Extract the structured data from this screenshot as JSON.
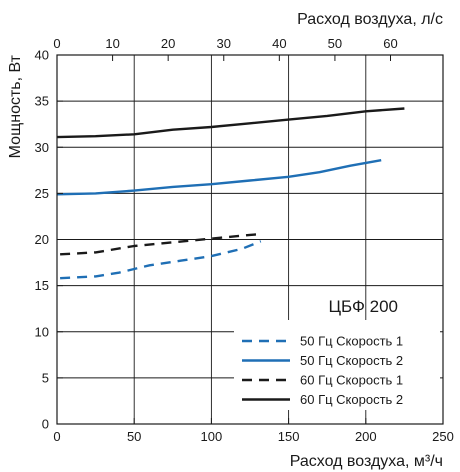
{
  "chart_data": {
    "type": "line",
    "title": "ЦБФ 200",
    "xlabel": "Расход воздуха, м³/ч",
    "x2label": "Расход воздуха, л/с",
    "ylabel": "Мощность, Вт",
    "xlim": [
      0,
      250
    ],
    "x2lim": [
      0,
      69.444
    ],
    "ylim": [
      0,
      40
    ],
    "xticks": [
      "0",
      "50",
      "100",
      "150",
      "200",
      "250"
    ],
    "x2ticks": [
      "0",
      "10",
      "20",
      "30",
      "40",
      "50",
      "60"
    ],
    "yticks": [
      "0",
      "5",
      "10",
      "15",
      "20",
      "25",
      "30",
      "35",
      "40"
    ],
    "grid": true,
    "legend_position": "bottom-right",
    "series": [
      {
        "name": "50 Гц Скорость 1",
        "color": "#1f6fb5",
        "dash": "dashed",
        "x": [
          2,
          25,
          40,
          60,
          80,
          100,
          120,
          132
        ],
        "y": [
          15.8,
          16.0,
          16.4,
          17.2,
          17.7,
          18.2,
          19.0,
          19.8
        ]
      },
      {
        "name": "50 Гц Скорость 2",
        "color": "#1f6fb5",
        "dash": "solid",
        "x": [
          0,
          25,
          50,
          75,
          100,
          125,
          150,
          170,
          190,
          210
        ],
        "y": [
          24.9,
          25.0,
          25.3,
          25.7,
          26.0,
          26.4,
          26.8,
          27.3,
          28.0,
          28.6
        ]
      },
      {
        "name": "60 Гц Скорость 1",
        "color": "#1a1a1a",
        "dash": "dashed",
        "x": [
          2,
          25,
          50,
          75,
          100,
          125,
          133
        ],
        "y": [
          18.4,
          18.6,
          19.3,
          19.7,
          20.1,
          20.5,
          20.6
        ]
      },
      {
        "name": "60 Гц Скорость 2",
        "color": "#1a1a1a",
        "dash": "solid",
        "x": [
          0,
          25,
          50,
          75,
          100,
          125,
          150,
          175,
          200,
          225
        ],
        "y": [
          31.1,
          31.2,
          31.4,
          31.9,
          32.2,
          32.6,
          33.0,
          33.4,
          33.9,
          34.2
        ]
      }
    ]
  }
}
